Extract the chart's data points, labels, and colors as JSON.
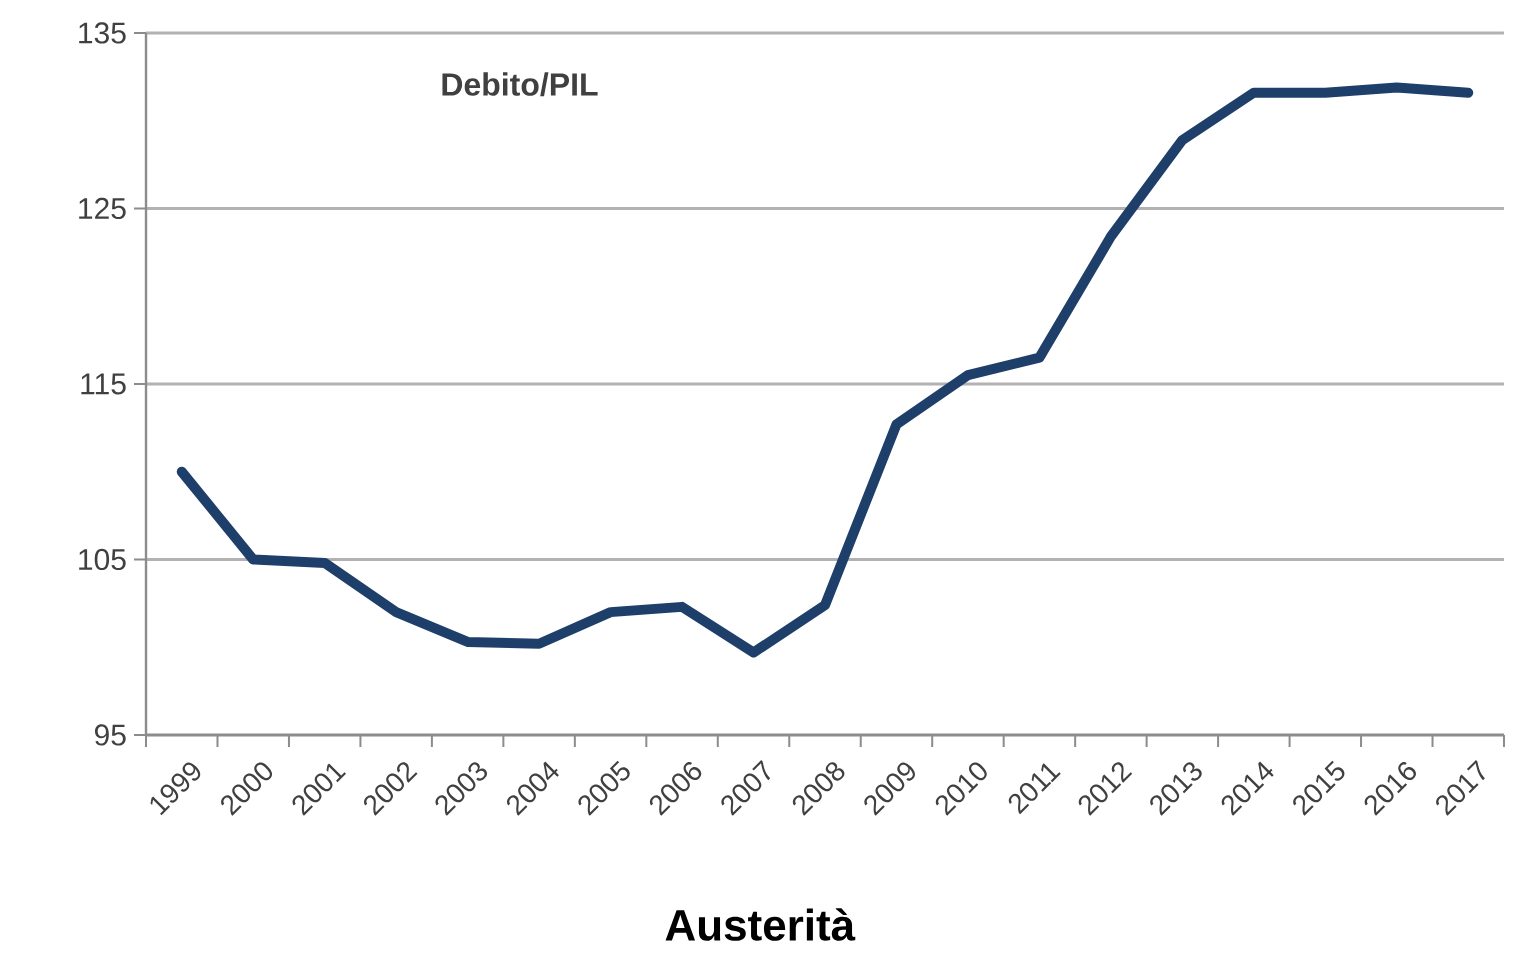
{
  "chart_data": {
    "type": "line",
    "title": "Debito/PIL",
    "annotations": [
      "Austerità"
    ],
    "categories": [
      "1999",
      "2000",
      "2001",
      "2002",
      "2003",
      "2004",
      "2005",
      "2006",
      "2007",
      "2008",
      "2009",
      "2010",
      "2011",
      "2012",
      "2013",
      "2014",
      "2015",
      "2016",
      "2017"
    ],
    "series": [
      {
        "color": "#1f3f6b",
        "values": [
          110,
          105,
          104.8,
          102,
          100.3,
          100.2,
          102,
          102.3,
          99.7,
          102.4,
          112.7,
          115.5,
          116.5,
          123.4,
          128.9,
          131.6,
          131.6,
          131.9,
          131.6
        ]
      }
    ],
    "ylim": [
      95,
      135
    ],
    "yticks": [
      95,
      105,
      115,
      125,
      135
    ],
    "grid": "y",
    "marker": "none",
    "line_style": "solid"
  }
}
